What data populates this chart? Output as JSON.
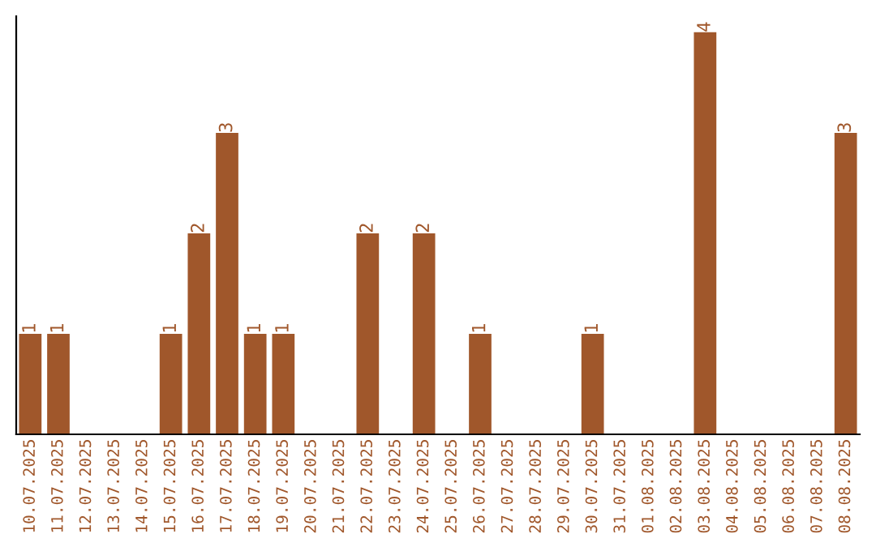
{
  "chart_data": {
    "type": "bar",
    "categories": [
      "10.07.2025",
      "11.07.2025",
      "12.07.2025",
      "13.07.2025",
      "14.07.2025",
      "15.07.2025",
      "16.07.2025",
      "17.07.2025",
      "18.07.2025",
      "19.07.2025",
      "20.07.2025",
      "21.07.2025",
      "22.07.2025",
      "23.07.2025",
      "24.07.2025",
      "25.07.2025",
      "26.07.2025",
      "27.07.2025",
      "28.07.2025",
      "29.07.2025",
      "30.07.2025",
      "31.07.2025",
      "01.08.2025",
      "02.08.2025",
      "03.08.2025",
      "04.08.2025",
      "05.08.2025",
      "06.08.2025",
      "07.08.2025",
      "08.08.2025"
    ],
    "values": [
      1,
      1,
      0,
      0,
      0,
      1,
      2,
      3,
      1,
      1,
      0,
      0,
      2,
      0,
      2,
      0,
      1,
      0,
      0,
      0,
      1,
      0,
      0,
      0,
      4,
      0,
      0,
      0,
      0,
      3
    ],
    "value_labels": [
      "1",
      "1",
      null,
      null,
      null,
      "1",
      "2",
      "3",
      "1",
      "1",
      null,
      null,
      "2",
      null,
      "2",
      null,
      "1",
      null,
      null,
      null,
      "1",
      null,
      null,
      null,
      "4",
      null,
      null,
      null,
      null,
      "3"
    ],
    "color": "#a0572b",
    "ylim": [
      0,
      4.16
    ],
    "tick_labels": "x",
    "grid": false,
    "legend": false
  }
}
